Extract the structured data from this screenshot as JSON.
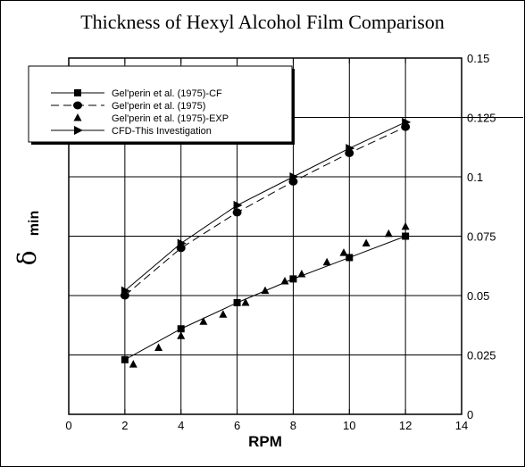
{
  "chart_data": {
    "type": "line",
    "title": "Thickness of Hexyl Alcohol Film Comparison",
    "xlabel": "RPM",
    "ylabel": "δ",
    "ylabel_sub": "min",
    "xlim": [
      0,
      14
    ],
    "ylim": [
      0,
      0.15
    ],
    "x_ticks": [
      "0",
      "2",
      "4",
      "6",
      "8",
      "10",
      "12",
      "14"
    ],
    "y_ticks": [
      "0",
      "0.025",
      "0.05",
      "0.075",
      "0.1",
      "0.125",
      "0.15"
    ],
    "grid": true,
    "legend_position": "top-left",
    "series": [
      {
        "name": "Gel'perin et al. (1975)-CF",
        "style": "solid-square",
        "points": [
          [
            2,
            0.023
          ],
          [
            4,
            0.036
          ],
          [
            6,
            0.047
          ],
          [
            8,
            0.057
          ],
          [
            10,
            0.066
          ],
          [
            12,
            0.075
          ]
        ]
      },
      {
        "name": "Gel'perin et al. (1975)",
        "style": "dashed-circle",
        "points": [
          [
            2,
            0.05
          ],
          [
            4,
            0.07
          ],
          [
            6,
            0.085
          ],
          [
            8,
            0.098
          ],
          [
            10,
            0.11
          ],
          [
            12,
            0.121
          ]
        ]
      },
      {
        "name": "Gel'perin et al. (1975)-EXP",
        "style": "triangle",
        "points": [
          [
            2.3,
            0.021
          ],
          [
            3.2,
            0.028
          ],
          [
            4,
            0.033
          ],
          [
            4.8,
            0.039
          ],
          [
            5.5,
            0.042
          ],
          [
            6.3,
            0.047
          ],
          [
            7,
            0.052
          ],
          [
            7.7,
            0.056
          ],
          [
            8.3,
            0.059
          ],
          [
            9.2,
            0.064
          ],
          [
            9.8,
            0.068
          ],
          [
            10.6,
            0.072
          ],
          [
            11.4,
            0.076
          ],
          [
            12,
            0.079
          ]
        ]
      },
      {
        "name": "CFD-This Investigation",
        "style": "solid-right-triangle",
        "points": [
          [
            2,
            0.052
          ],
          [
            4,
            0.072
          ],
          [
            6,
            0.088
          ],
          [
            8,
            0.1
          ],
          [
            10,
            0.112
          ],
          [
            12,
            0.123
          ]
        ]
      }
    ]
  }
}
